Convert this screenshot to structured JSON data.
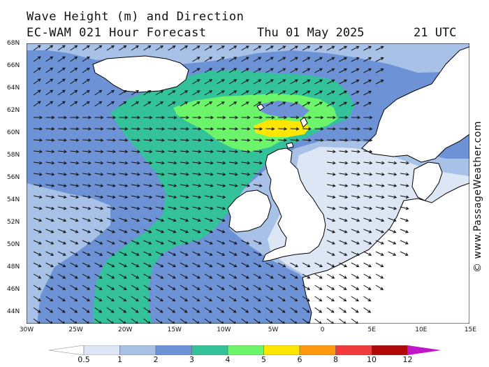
{
  "title": {
    "line1": "Wave Height (m) and Direction",
    "line2": "EC-WAM 021 Hour Forecast",
    "date": "Thu 01 May 2025",
    "time": "21 UTC"
  },
  "credit": "© www.PassageWeather.com",
  "lat_labels": [
    "68N",
    "66N",
    "64N",
    "62N",
    "60N",
    "58N",
    "56N",
    "54N",
    "52N",
    "50N",
    "48N",
    "46N",
    "44N"
  ],
  "lon_labels": [
    "30W",
    "25W",
    "20W",
    "15W",
    "10W",
    "5W",
    "0",
    "5E",
    "10E",
    "15E"
  ],
  "legend": {
    "labels": [
      "0.5",
      "1",
      "2",
      "3",
      "4",
      "5",
      "6",
      "8",
      "10",
      "12"
    ],
    "colors": [
      "#ffffff",
      "#dde6f5",
      "#a8c1e6",
      "#6d93d6",
      "#33c29a",
      "#6cf56a",
      "#ffe600",
      "#ff9a10",
      "#f23a3a",
      "#b00808",
      "#c018c8"
    ]
  },
  "map": {
    "extent": {
      "lon_min": -30,
      "lon_max": 15,
      "lat_min": 43,
      "lat_max": 68
    },
    "colors": {
      "sea_deep": "#6d93d6",
      "band_1_2": "#a8c1e6",
      "band_05_1": "#dde6f5",
      "band_3_4": "#33c29a",
      "band_4_5": "#6cf56a",
      "band_5_6": "#ffe600",
      "land": "#ffffff",
      "coast": "#000000"
    }
  }
}
